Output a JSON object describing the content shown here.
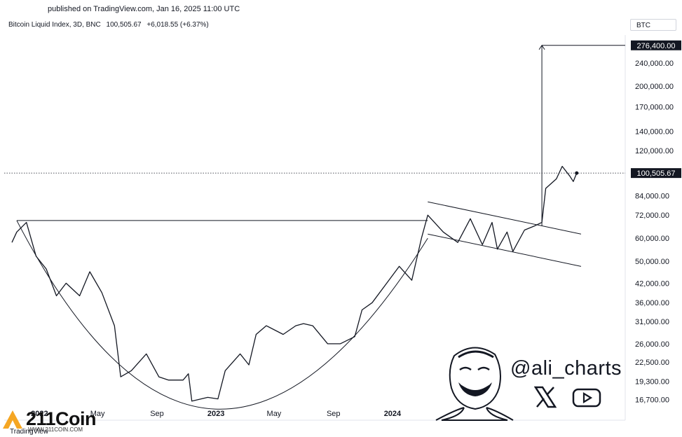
{
  "header": {
    "published": "published on TradingView.com, Jan 16, 2025 11:00 UTC",
    "symbol": "Bitcoin Liquid Index, 3D, BNC",
    "price": "100,505.67",
    "change": "+6,018.55 (+6.37%)",
    "ticker": "BTC"
  },
  "watermark": {
    "handle": "@ali_charts",
    "icons": [
      "x-icon",
      "youtube-icon",
      "cartoon-face"
    ]
  },
  "brand": {
    "name": "211Coin",
    "sub": "WWW.211COIN.COM",
    "platform": "TradingView"
  },
  "chart_data": {
    "type": "line",
    "title": "Bitcoin Liquid Index, 3D, BNC",
    "scale": "log",
    "ylim": [
      15000,
      300000
    ],
    "y_ticks": [
      "16,700.00",
      "19,300.00",
      "22,500.00",
      "26,000.00",
      "31,000.00",
      "36,000.00",
      "42,000.00",
      "50,000.00",
      "60,000.00",
      "72,000.00",
      "84,000.00",
      "120,000.00",
      "140,000.00",
      "170,000.00",
      "200,000.00",
      "240,000.00"
    ],
    "x_ticks": [
      "2022",
      "May",
      "Sep",
      "2023",
      "May",
      "Sep",
      "2024"
    ],
    "current_price_label": "100,505.67",
    "target_label": "276,400.00",
    "series": [
      {
        "x": [
          "2021-11-05",
          "2021-11-15",
          "2021-12-05",
          "2021-12-25",
          "2022-01-15",
          "2022-02-05",
          "2022-02-25",
          "2022-03-25",
          "2022-04-15",
          "2022-05-10",
          "2022-06-05",
          "2022-06-18",
          "2022-07-10",
          "2022-08-10",
          "2022-09-05",
          "2022-09-25",
          "2022-10-25",
          "2022-11-05",
          "2022-11-12",
          "2022-12-15",
          "2023-01-05",
          "2023-01-20",
          "2023-02-20",
          "2023-03-10",
          "2023-03-25",
          "2023-04-15",
          "2023-05-20",
          "2023-06-15",
          "2023-07-01",
          "2023-07-20",
          "2023-08-20",
          "2023-09-15",
          "2023-10-15",
          "2023-10-30",
          "2023-11-20",
          "2023-12-20",
          "2024-01-15",
          "2024-02-10",
          "2024-03-01",
          "2024-03-14",
          "2024-04-15",
          "2024-05-15",
          "2024-06-10",
          "2024-07-05",
          "2024-07-25",
          "2024-08-05",
          "2024-08-25",
          "2024-09-06",
          "2024-09-30",
          "2024-10-20",
          "2024-11-05",
          "2024-11-13",
          "2024-12-05",
          "2024-12-17",
          "2025-01-02",
          "2025-01-09",
          "2025-01-16"
        ],
        "values": [
          58000,
          63000,
          68000,
          52000,
          47000,
          38000,
          42000,
          38000,
          46000,
          39000,
          30000,
          20000,
          21000,
          24000,
          20000,
          19500,
          19500,
          20500,
          16500,
          17000,
          16800,
          21000,
          24000,
          22000,
          28000,
          30000,
          28000,
          30000,
          30500,
          30000,
          26000,
          26000,
          27500,
          34000,
          36000,
          42000,
          48000,
          43000,
          60000,
          72000,
          63000,
          58000,
          70000,
          57000,
          68000,
          55000,
          63000,
          54000,
          64000,
          66000,
          68000,
          89000,
          96000,
          106000,
          98000,
          94000,
          100505.67
        ]
      }
    ],
    "annotations": [
      {
        "type": "cup_arc",
        "from": "2021-11-15",
        "bottom": "2022-12-15",
        "to": "2024-03-14"
      },
      {
        "type": "rim_line",
        "from": "2021-11-15",
        "to": "2024-03-14",
        "value": 69000
      },
      {
        "type": "flag_upper",
        "from": "2024-03-14",
        "to": "2025-01-25",
        "values": [
          80000,
          62000
        ]
      },
      {
        "type": "flag_lower",
        "from": "2024-03-14",
        "to": "2025-01-25",
        "values": [
          62000,
          48000
        ]
      },
      {
        "type": "target_arrow",
        "x": "2024-11-05",
        "from_value": 66000,
        "to_value": 276400
      }
    ]
  }
}
